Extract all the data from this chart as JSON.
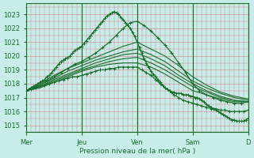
{
  "background_color": "#c8ece8",
  "plot_bg_color": "#c8ece8",
  "line_color": "#1a6e2e",
  "text_color": "#1a6e2e",
  "xlabel": "Pression niveau de la mer( hPa )",
  "ylim": [
    1014.5,
    1023.8
  ],
  "yticks": [
    1015,
    1016,
    1017,
    1018,
    1019,
    1020,
    1021,
    1022,
    1023
  ],
  "day_labels": [
    "Mer",
    "Jeu",
    "Ven",
    "Sam",
    "D"
  ],
  "day_positions": [
    0,
    24,
    48,
    72,
    96
  ],
  "figsize": [
    3.2,
    2.0
  ],
  "dpi": 100,
  "lines": [
    {
      "x": [
        0,
        1,
        2,
        3,
        4,
        5,
        6,
        7,
        8,
        9,
        10,
        11,
        12,
        13,
        14,
        15,
        16,
        17,
        18,
        19,
        20,
        21,
        22,
        23,
        24,
        25,
        26,
        27,
        28,
        29,
        30,
        31,
        32,
        33,
        34,
        35,
        36,
        37,
        38,
        39,
        40,
        41,
        42,
        43,
        44,
        45,
        46,
        47,
        48,
        49,
        50,
        51,
        52,
        53,
        54,
        55,
        56,
        57,
        58,
        59,
        60,
        61,
        62,
        63,
        64,
        65,
        66,
        67,
        68,
        69,
        70,
        71,
        72,
        73,
        74,
        75,
        76,
        77,
        78,
        79,
        80,
        81,
        82,
        83,
        84,
        85,
        86,
        87,
        88,
        89,
        90,
        91,
        92,
        93,
        94,
        95,
        96
      ],
      "y": [
        1017.5,
        1017.6,
        1017.7,
        1017.8,
        1017.9,
        1018.0,
        1018.1,
        1018.2,
        1018.3,
        1018.5,
        1018.6,
        1018.8,
        1019.0,
        1019.2,
        1019.4,
        1019.6,
        1019.7,
        1019.8,
        1019.9,
        1020.0,
        1020.2,
        1020.4,
        1020.5,
        1020.6,
        1020.7,
        1020.9,
        1021.1,
        1021.3,
        1021.5,
        1021.7,
        1021.9,
        1022.1,
        1022.3,
        1022.5,
        1022.7,
        1022.9,
        1023.0,
        1023.1,
        1023.2,
        1023.1,
        1023.0,
        1022.8,
        1022.6,
        1022.4,
        1022.2,
        1022.0,
        1021.7,
        1021.4,
        1021.0,
        1020.6,
        1020.2,
        1019.8,
        1019.5,
        1019.2,
        1018.9,
        1018.7,
        1018.5,
        1018.3,
        1018.1,
        1017.9,
        1017.7,
        1017.6,
        1017.5,
        1017.4,
        1017.4,
        1017.3,
        1017.3,
        1017.3,
        1017.2,
        1017.2,
        1017.2,
        1017.1,
        1017.1,
        1017.0,
        1017.0,
        1016.9,
        1016.8,
        1016.7,
        1016.5,
        1016.4,
        1016.3,
        1016.2,
        1016.1,
        1016.0,
        1015.9,
        1015.8,
        1015.7,
        1015.6,
        1015.5,
        1015.4,
        1015.4,
        1015.3,
        1015.3,
        1015.3,
        1015.3,
        1015.4,
        1015.5
      ],
      "marker": true,
      "lw": 1.0
    },
    {
      "x": [
        0,
        3,
        6,
        9,
        12,
        15,
        18,
        21,
        24,
        27,
        30,
        33,
        36,
        39,
        42,
        45,
        48,
        51,
        54,
        57,
        60,
        63,
        66,
        69,
        72,
        75,
        78,
        81,
        84,
        87,
        90,
        93,
        96
      ],
      "y": [
        1017.5,
        1017.7,
        1017.9,
        1018.2,
        1018.5,
        1018.8,
        1019.1,
        1019.4,
        1019.6,
        1019.9,
        1020.2,
        1020.6,
        1021.0,
        1021.5,
        1022.0,
        1022.4,
        1022.5,
        1022.2,
        1021.8,
        1021.3,
        1020.8,
        1020.2,
        1019.5,
        1018.8,
        1018.0,
        1017.5,
        1017.2,
        1017.0,
        1016.8,
        1016.7,
        1016.6,
        1016.6,
        1016.7
      ],
      "marker": true,
      "lw": 0.9
    },
    {
      "x": [
        0,
        6,
        12,
        18,
        24,
        30,
        36,
        42,
        48,
        54,
        60,
        66,
        72,
        78,
        84,
        90,
        96
      ],
      "y": [
        1017.5,
        1018.0,
        1018.6,
        1019.1,
        1019.5,
        1019.9,
        1020.3,
        1020.7,
        1021.0,
        1020.5,
        1020.0,
        1019.3,
        1018.5,
        1017.9,
        1017.4,
        1017.1,
        1016.9
      ],
      "marker": false,
      "lw": 0.8
    },
    {
      "x": [
        0,
        6,
        12,
        18,
        24,
        30,
        36,
        42,
        48,
        54,
        60,
        66,
        72,
        78,
        84,
        90,
        96
      ],
      "y": [
        1017.5,
        1017.9,
        1018.4,
        1018.9,
        1019.3,
        1019.7,
        1020.0,
        1020.3,
        1020.5,
        1020.1,
        1019.6,
        1018.9,
        1018.2,
        1017.7,
        1017.3,
        1017.0,
        1016.8
      ],
      "marker": false,
      "lw": 0.8
    },
    {
      "x": [
        0,
        6,
        12,
        18,
        24,
        30,
        36,
        42,
        48,
        54,
        60,
        66,
        72,
        78,
        84,
        90,
        96
      ],
      "y": [
        1017.5,
        1017.8,
        1018.3,
        1018.7,
        1019.1,
        1019.5,
        1019.8,
        1020.1,
        1020.2,
        1019.8,
        1019.3,
        1018.6,
        1018.0,
        1017.5,
        1017.1,
        1016.8,
        1016.7
      ],
      "marker": false,
      "lw": 0.8
    },
    {
      "x": [
        0,
        6,
        12,
        18,
        24,
        30,
        36,
        42,
        48,
        54,
        60,
        66,
        72,
        78,
        84,
        90,
        96
      ],
      "y": [
        1017.5,
        1017.8,
        1018.2,
        1018.6,
        1019.0,
        1019.3,
        1019.6,
        1019.8,
        1019.9,
        1019.5,
        1019.0,
        1018.4,
        1017.8,
        1017.4,
        1017.0,
        1016.8,
        1016.7
      ],
      "marker": false,
      "lw": 0.8
    },
    {
      "x": [
        0,
        6,
        12,
        18,
        24,
        30,
        36,
        42,
        48,
        54,
        60,
        66,
        72,
        78,
        84,
        90,
        96
      ],
      "y": [
        1017.5,
        1017.7,
        1018.1,
        1018.5,
        1018.9,
        1019.2,
        1019.4,
        1019.5,
        1019.5,
        1019.2,
        1018.7,
        1018.1,
        1017.5,
        1017.2,
        1016.9,
        1016.7,
        1016.7
      ],
      "marker": false,
      "lw": 0.8
    },
    {
      "x": [
        0,
        2,
        4,
        6,
        8,
        10,
        12,
        14,
        16,
        18,
        20,
        22,
        24,
        26,
        28,
        30,
        32,
        34,
        36,
        38,
        40,
        42,
        44,
        46,
        48,
        50,
        52,
        54,
        56,
        58,
        60,
        62,
        64,
        66,
        68,
        70,
        72,
        74,
        76,
        78,
        80,
        82,
        84,
        86,
        88,
        90,
        92,
        94,
        96
      ],
      "y": [
        1017.5,
        1017.6,
        1017.7,
        1017.8,
        1017.9,
        1018.0,
        1018.1,
        1018.2,
        1018.3,
        1018.4,
        1018.5,
        1018.5,
        1018.6,
        1018.7,
        1018.8,
        1018.9,
        1019.0,
        1019.0,
        1019.1,
        1019.1,
        1019.2,
        1019.2,
        1019.2,
        1019.2,
        1019.2,
        1019.0,
        1018.8,
        1018.6,
        1018.3,
        1018.0,
        1017.7,
        1017.5,
        1017.2,
        1017.0,
        1016.8,
        1016.7,
        1016.6,
        1016.5,
        1016.4,
        1016.3,
        1016.2,
        1016.2,
        1016.1,
        1016.1,
        1016.0,
        1016.0,
        1016.0,
        1016.0,
        1016.1
      ],
      "marker": true,
      "lw": 0.9
    }
  ]
}
